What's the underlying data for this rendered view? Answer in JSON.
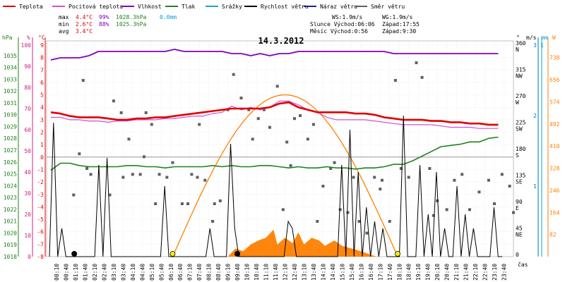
{
  "legend": [
    {
      "label": "Teplota",
      "color": "#e00000"
    },
    {
      "label": "Pocitová teplota",
      "color": "#d050d0"
    },
    {
      "label": "Vlhkost",
      "color": "#8000c0"
    },
    {
      "label": "Tlak",
      "color": "#208020"
    },
    {
      "label": "Srážky",
      "color": "#20a0d0"
    },
    {
      "label": "Rychlost větru",
      "color": "#000000"
    },
    {
      "label": "Náraz větru",
      "color": "#202090"
    },
    {
      "label": "Směr větru",
      "color": "#606060"
    }
  ],
  "stats": {
    "max_label": "max",
    "min_label": "min",
    "avg_label": "avg",
    "max_temp": "4.4°C",
    "max_hum": "99%",
    "max_press": "1028.3hPa",
    "max_rain": "0.0mm",
    "min_temp": "2.6°C",
    "min_hum": "88%",
    "min_press": "1025.3hPa",
    "avg_temp": "3.4°C",
    "ws": "WS:1.9m/s",
    "wg": "WG:1.9m/s",
    "sun": "Slunce Východ:06:06",
    "sun_set": "Západ:17:55",
    "moon": "Měsíc Východ:0:56",
    "moon_set": "Západ:9:30"
  },
  "colors": {
    "temp": "#e00000",
    "feels": "#d050d0",
    "hum": "#8000c0",
    "press": "#208020",
    "rain": "#00a0d0",
    "wind": "#000000",
    "gust": "#202090",
    "dir": "#606060",
    "solar_fill": "#ff8000",
    "solar_curve": "#ff8000",
    "axis_green": "#208020",
    "axis_pink": "#d02080",
    "axis_red": "#e00000",
    "axis_dir": "#606060",
    "axis_wind": "#0070c0",
    "axis_mm": "#00a0d0",
    "axis_w": "#ff8000"
  },
  "chart_data": {
    "type": "line",
    "title": "14.3.2012",
    "xlabel": "čas",
    "x_ticks": [
      "00:10",
      "00:40",
      "01:10",
      "01:40",
      "02:10",
      "02:40",
      "03:10",
      "03:40",
      "04:10",
      "04:40",
      "05:10",
      "05:40",
      "06:10",
      "06:40",
      "07:10",
      "07:40",
      "08:10",
      "08:40",
      "09:10",
      "09:40",
      "10:10",
      "10:40",
      "11:10",
      "11:40",
      "12:10",
      "12:40",
      "13:10",
      "13:40",
      "14:10",
      "14:40",
      "15:10",
      "15:40",
      "16:10",
      "16:40",
      "17:10",
      "17:40",
      "18:10",
      "18:40",
      "19:10",
      "19:40",
      "20:10",
      "20:40",
      "21:10",
      "21:40",
      "22:10",
      "22:40",
      "23:10",
      "23:40"
    ],
    "axes": {
      "hPa": {
        "label": "hPa",
        "range": [
          1018,
          1036
        ],
        "ticks": [
          1018,
          1019,
          1020,
          1021,
          1022,
          1023,
          1024,
          1025,
          1026,
          1027,
          1028,
          1029,
          1030,
          1031,
          1032,
          1033,
          1034,
          1035
        ]
      },
      "percent": {
        "label": "%",
        "range": [
          0,
          100
        ],
        "ticks": [
          0,
          10,
          20,
          30,
          40,
          50,
          60,
          70,
          80,
          90,
          100
        ]
      },
      "celsius": {
        "label": "°C",
        "range": [
          -8,
          9
        ],
        "ticks": [
          9,
          8,
          7,
          6,
          5,
          4,
          3,
          2,
          1,
          0,
          -1,
          -2,
          -3,
          -4,
          -5,
          -6,
          -7,
          -8
        ]
      },
      "direction": {
        "label": "°",
        "range": [
          0,
          360
        ],
        "ticks": [
          {
            "deg": "360",
            "dir": "N"
          },
          {
            "deg": "315",
            "dir": "NW"
          },
          {
            "deg": "270",
            "dir": "W"
          },
          {
            "deg": "225",
            "dir": "SW"
          },
          {
            "deg": "180",
            "dir": "S"
          },
          {
            "deg": "135",
            "dir": "SE"
          },
          {
            "deg": "90",
            "dir": "E"
          },
          {
            "deg": "45",
            "dir": "NE"
          },
          {
            "deg": "0",
            "dir": ""
          }
        ]
      },
      "wind": {
        "label": "m/s",
        "range": [
          0,
          3
        ],
        "ticks": [
          "3",
          "2",
          "1"
        ]
      },
      "rain": {
        "label": "mm",
        "range": [
          0,
          1
        ],
        "ticks": [
          "1"
        ]
      },
      "solar": {
        "label": "W",
        "range": [
          0,
          800
        ],
        "ticks": [
          738,
          656,
          574,
          492,
          410,
          328,
          246,
          164,
          82
        ]
      }
    },
    "series": [
      {
        "name": "Teplota",
        "axis": "celsius",
        "values": [
          3.6,
          3.5,
          3.3,
          3.2,
          3.2,
          3.2,
          3.1,
          3.0,
          3.0,
          3.1,
          3.1,
          3.2,
          3.2,
          3.3,
          3.4,
          3.5,
          3.6,
          3.7,
          3.8,
          3.9,
          3.9,
          3.9,
          3.9,
          4.0,
          4.3,
          4.4,
          4.0,
          3.8,
          3.6,
          3.6,
          3.6,
          3.6,
          3.5,
          3.5,
          3.4,
          3.2,
          3.1,
          3.0,
          3.0,
          3.0,
          2.9,
          2.9,
          2.8,
          2.8,
          2.7,
          2.7,
          2.6,
          2.6
        ]
      },
      {
        "name": "Pocitová teplota",
        "axis": "celsius",
        "values": [
          3.2,
          3.2,
          3.0,
          3.0,
          2.9,
          2.9,
          2.8,
          2.9,
          2.9,
          3.0,
          3.0,
          3.0,
          3.1,
          3.1,
          3.2,
          3.3,
          3.3,
          3.5,
          3.6,
          4.1,
          3.8,
          4.0,
          3.8,
          4.0,
          4.5,
          4.5,
          4.2,
          3.8,
          3.6,
          3.2,
          3.0,
          3.0,
          3.0,
          3.0,
          2.9,
          2.8,
          2.7,
          2.6,
          2.6,
          2.6,
          2.6,
          2.5,
          2.4,
          2.4,
          2.4,
          2.3,
          2.3,
          2.3
        ]
      },
      {
        "name": "Vlhkost",
        "axis": "percent",
        "values": [
          93,
          94,
          94,
          94,
          95,
          97,
          97,
          97,
          97,
          97,
          97,
          97,
          97,
          98,
          97,
          97,
          97,
          97,
          97,
          96,
          96,
          95,
          96,
          95,
          96,
          96,
          97,
          97,
          97,
          97,
          97,
          97,
          97,
          97,
          97,
          97,
          96,
          96,
          96,
          96,
          96,
          96,
          96,
          96,
          96,
          96,
          96,
          96
        ]
      },
      {
        "name": "Tlak",
        "axis": "hPa",
        "values": [
          1025.3,
          1025.9,
          1025.9,
          1025.7,
          1025.6,
          1025.6,
          1025.6,
          1025.6,
          1025.7,
          1025.7,
          1025.6,
          1025.6,
          1025.5,
          1025.6,
          1025.6,
          1025.6,
          1025.6,
          1025.7,
          1025.6,
          1025.7,
          1025.6,
          1025.6,
          1025.7,
          1025.7,
          1025.6,
          1025.5,
          1025.6,
          1025.5,
          1025.5,
          1025.6,
          1025.5,
          1025.5,
          1025.4,
          1025.5,
          1025.5,
          1025.6,
          1025.8,
          1025.8,
          1026.1,
          1026.5,
          1026.9,
          1027.3,
          1027.4,
          1027.5,
          1027.7,
          1027.7,
          1028.0,
          1028.1
        ]
      },
      {
        "name": "Rychlost větru",
        "axis": "wind",
        "values": [
          0,
          1.9,
          0,
          0.4,
          0,
          0,
          0,
          0,
          0,
          0,
          0,
          0,
          1.3,
          0,
          1.4,
          0,
          0,
          0,
          0,
          0,
          0,
          0,
          0,
          0,
          0,
          0,
          0,
          0,
          1.0,
          0,
          0,
          0,
          0,
          0,
          0,
          0,
          0,
          0,
          0,
          0.4,
          0,
          0,
          0,
          0,
          1.6,
          0.4,
          0,
          0,
          0,
          0,
          0,
          0,
          0,
          0,
          0,
          0,
          0,
          0,
          0.5,
          0.4,
          0,
          0,
          0,
          0,
          0,
          0,
          0,
          0,
          0,
          0,
          0,
          1.3,
          0,
          1.8,
          0,
          1.2,
          0,
          0.7,
          0,
          0.5,
          0,
          0.4,
          0,
          0,
          0,
          0,
          2.0,
          0,
          0,
          0,
          1.3,
          0,
          0.6,
          0,
          1.2,
          0,
          0.4,
          0,
          0,
          1.0,
          0,
          0.6,
          0,
          0.4,
          0,
          0,
          0,
          0,
          0.7,
          0,
          0
        ]
      }
    ],
    "markers": {
      "sunrise": "06:06",
      "sunset": "17:55",
      "moonrise": "00:56",
      "moonset": "09:30"
    }
  }
}
